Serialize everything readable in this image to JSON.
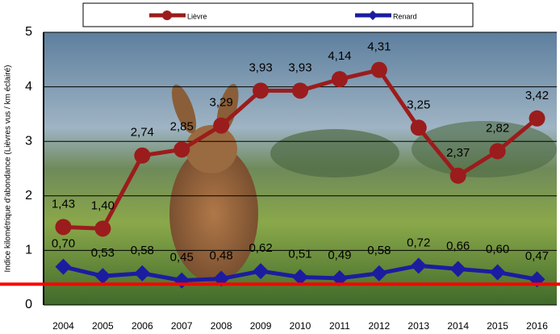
{
  "chart_data": {
    "type": "line",
    "y_label": "Indice kilométrique d'abondance (Lièvres vus / km éclairé)",
    "categories": [
      "2004",
      "2005",
      "2006",
      "2007",
      "2008",
      "2009",
      "2010",
      "2011",
      "2012",
      "2013",
      "2014",
      "2015",
      "2016"
    ],
    "series": [
      {
        "name": "Lièvre",
        "color": "#9b1c1c",
        "marker": "circle",
        "values": [
          1.43,
          1.4,
          2.74,
          2.85,
          3.29,
          3.93,
          3.93,
          4.14,
          4.31,
          3.25,
          2.37,
          2.82,
          3.42
        ],
        "value_labels": [
          "1,43",
          "1,40",
          "2,74",
          "2,85",
          "3,29",
          "3,93",
          "3,93",
          "4,14",
          "4,31",
          "3,25",
          "2,37",
          "2,82",
          "3,42"
        ]
      },
      {
        "name": "Renard",
        "color": "#1c1ca0",
        "marker": "diamond",
        "values": [
          0.7,
          0.53,
          0.58,
          0.45,
          0.48,
          0.62,
          0.51,
          0.49,
          0.58,
          0.72,
          0.66,
          0.6,
          0.47
        ],
        "value_labels": [
          "0,70",
          "0,53",
          "0,58",
          "0,45",
          "0,48",
          "0,62",
          "0,51",
          "0,49",
          "0,58",
          "0,72",
          "0,66",
          "0,60",
          "0,47"
        ]
      }
    ],
    "ylim": [
      0,
      5
    ],
    "yticks": [
      0,
      1,
      2,
      3,
      4,
      5
    ],
    "grid": true,
    "hline": {
      "value": 0.38,
      "color": "#ff0000"
    }
  }
}
